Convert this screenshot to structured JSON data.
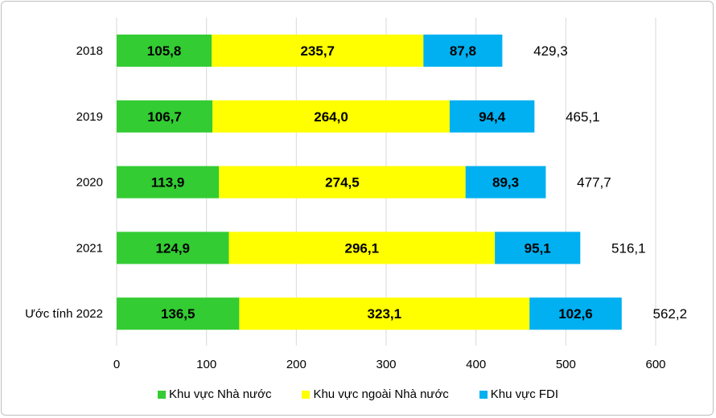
{
  "chart_data": {
    "type": "bar",
    "orientation": "horizontal",
    "stacked": true,
    "categories": [
      "2018",
      "2019",
      "2020",
      "2021",
      "Ước tính 2022"
    ],
    "series": [
      {
        "name": "Khu vực Nhà nước",
        "color": "#33cc33",
        "values": [
          105.8,
          106.7,
          113.9,
          124.9,
          136.5
        ],
        "labels": [
          "105,8",
          "106,7",
          "113,9",
          "124,9",
          "136,5"
        ]
      },
      {
        "name": "Khu vực ngoài Nhà nước",
        "color": "#ffff00",
        "values": [
          235.7,
          264.0,
          274.5,
          296.1,
          323.1
        ],
        "labels": [
          "235,7",
          "264,0",
          "274,5",
          "296,1",
          "323,1"
        ]
      },
      {
        "name": "Khu vực FDI",
        "color": "#00b0f0",
        "values": [
          87.8,
          94.4,
          89.3,
          95.1,
          102.6
        ],
        "labels": [
          "87,8",
          "94,4",
          "89,3",
          "95,1",
          "102,6"
        ]
      }
    ],
    "totals": [
      "429,3",
      "465,1",
      "477,7",
      "516,1",
      "562,2"
    ],
    "xlim": [
      0,
      600
    ],
    "xticks": [
      "0",
      "100",
      "200",
      "300",
      "400",
      "500",
      "600"
    ],
    "grid": true,
    "legend": "bottom"
  }
}
